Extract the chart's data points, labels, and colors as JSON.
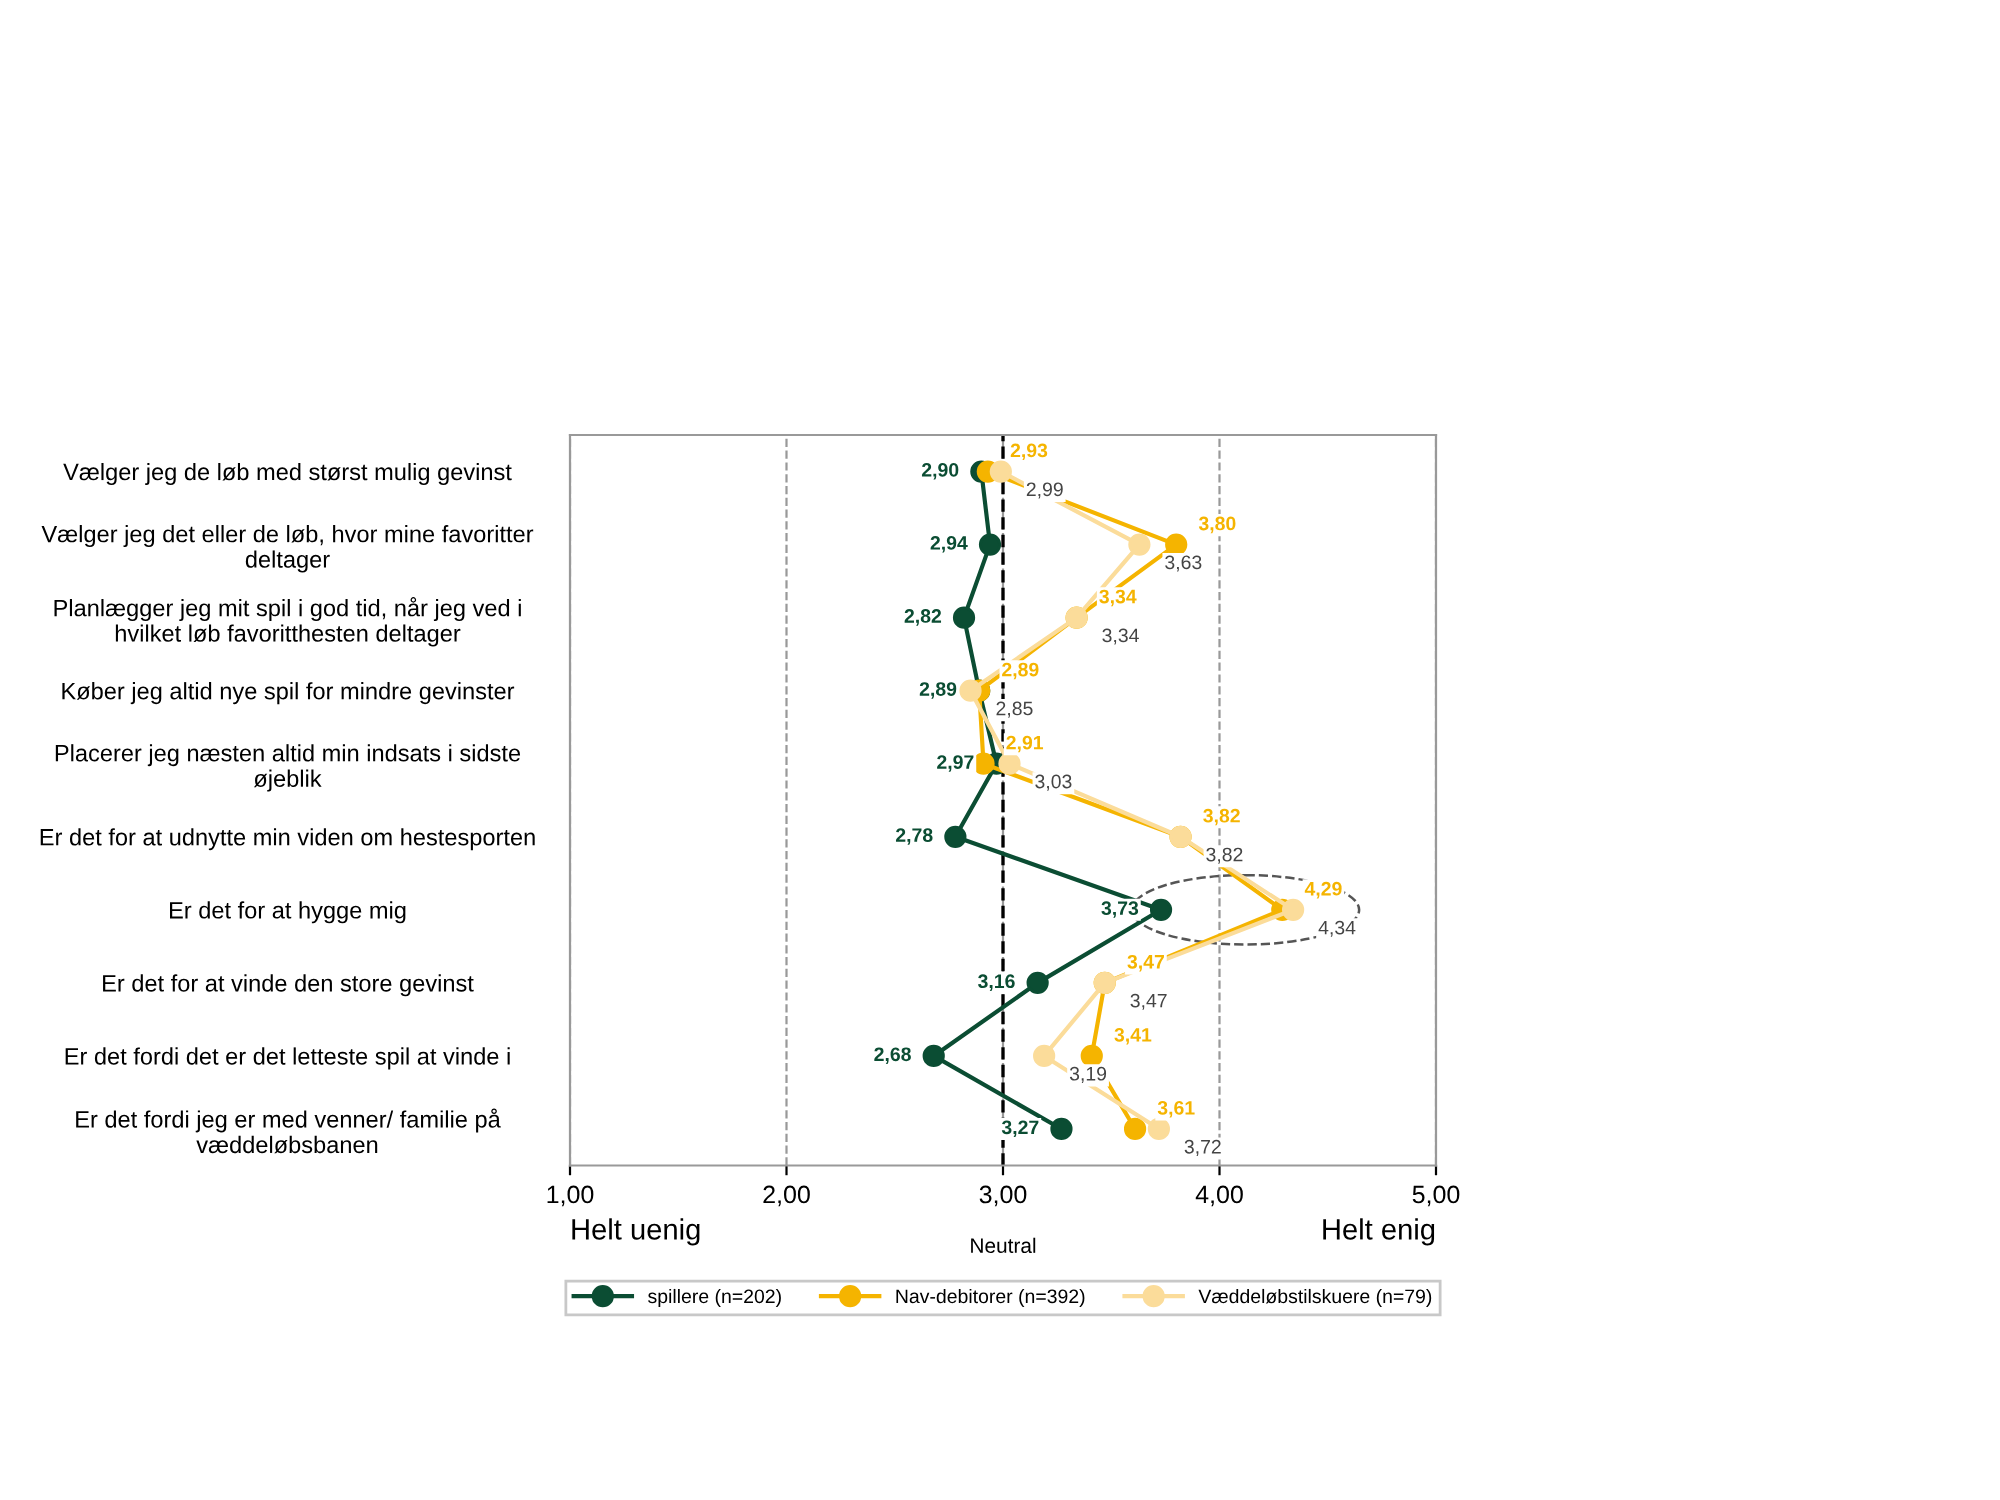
{
  "chart_data": {
    "type": "line",
    "orientation": "horizontal",
    "categories": [
      "Vælger jeg de løb med størst mulig gevinst",
      "Vælger jeg det eller de løb, hvor mine favoritter\ndeltager",
      "Planlægger jeg mit spil i god tid, når jeg ved i\nhvilket løb favoritthesten deltager",
      "Køber jeg altid nye spil for mindre gevinster",
      "Placerer jeg næsten altid min indsats i sidste\nøjeblik",
      "Er det for at udnytte min viden om hestesporten",
      "Er det for at hygge mig",
      "Er det for at vinde den store gevinst",
      "Er det fordi det er det letteste spil at vinde i",
      "Er det fordi jeg er med venner/ familie på\nvæddeløbsbanen"
    ],
    "series": [
      {
        "name": "spillere (n=202)",
        "color": "#0b4d33",
        "values": [
          2.9,
          2.94,
          2.82,
          2.89,
          2.97,
          2.78,
          3.73,
          3.16,
          2.68,
          3.27
        ],
        "value_labels": [
          "2,90",
          "2,94",
          "2,82",
          "2,89",
          "2,97",
          "2,78",
          "3,73",
          "3,16",
          "2,68",
          "3,27"
        ]
      },
      {
        "name": "Nav-debitorer (n=392)",
        "color": "#f5b400",
        "values": [
          2.93,
          3.8,
          3.34,
          2.89,
          2.91,
          3.82,
          4.29,
          3.47,
          3.41,
          3.61
        ],
        "value_labels": [
          "2,93",
          "3,80",
          "3,34",
          "2,89",
          "2,91",
          "3,82",
          "4,29",
          "3,47",
          "3,41",
          "3,61"
        ]
      },
      {
        "name": "Væddeløbstilskuere (n=79)",
        "color": "#fbdc9a",
        "values": [
          2.99,
          3.63,
          3.34,
          2.85,
          3.03,
          3.82,
          4.34,
          3.47,
          3.19,
          3.72
        ],
        "value_labels": [
          "2,99",
          "3,63",
          "3,34",
          "2,85",
          "3,03",
          "3,82",
          "4,34",
          "3,47",
          "3,19",
          "3,72"
        ]
      }
    ],
    "xlim": [
      1,
      5
    ],
    "xticks": [
      {
        "value": 1,
        "label": "1,00"
      },
      {
        "value": 2,
        "label": "2,00"
      },
      {
        "value": 3,
        "label": "3,00"
      },
      {
        "value": 4,
        "label": "4,00"
      },
      {
        "value": 5,
        "label": "5,00"
      }
    ],
    "ref_lines": [
      {
        "axis": "x",
        "value": 3,
        "color": "#000000",
        "line_style": "dashed"
      }
    ],
    "annotations": [
      "Helt uenig",
      "Neutral",
      "Helt enig"
    ],
    "grid": "x",
    "legend": "bottom",
    "marker": "circle",
    "line_style": "solid"
  }
}
